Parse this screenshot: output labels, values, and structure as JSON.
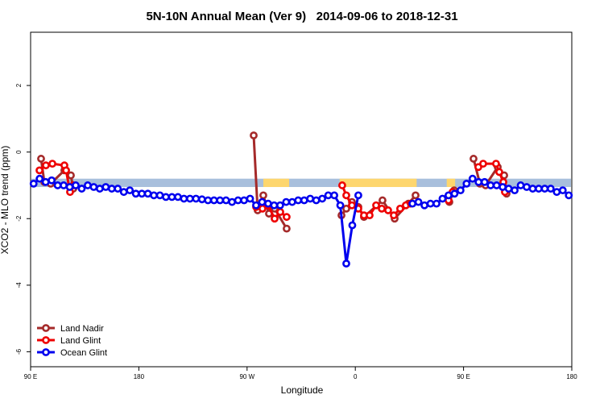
{
  "chart_data": {
    "type": "line",
    "title": "5N-10N Annual Mean (Ver 9)   2014-09-06 to 2018-12-31",
    "xlabel": "Longitude",
    "ylabel": "XCO2 - MLO trend (ppm)",
    "xlim": [
      90,
      540
    ],
    "ylim": [
      -6.45,
      3.6
    ],
    "xticks": [
      {
        "value": 90,
        "label": "90 E"
      },
      180,
      {
        "value": 270,
        "label": "90 W"
      },
      {
        "value": 360,
        "label": "0"
      },
      {
        "value": 450,
        "label": "90 E"
      },
      {
        "value": 540,
        "label": "180"
      }
    ],
    "yticks": [
      -6,
      -4,
      -2,
      0,
      2
    ],
    "band": {
      "ylim": [
        -1.05,
        -0.8
      ],
      "color": "#a8bfdc",
      "land_color": "#fdd66e",
      "land": [
        [
          283.5,
          305
        ],
        [
          347,
          411
        ],
        [
          436,
          443
        ]
      ]
    },
    "legend": "bottom-left",
    "series": [
      {
        "name": "Land Nadir",
        "color": "#a52a2a",
        "x": [
          98.7,
          101.4,
          106.7,
          118.1,
          123.5,
          125.5,
          200,
          275.5,
          278.8,
          283.5,
          288.2,
          292.9,
          302.9,
          325,
          348.5,
          352.5,
          357.2,
          362.5,
          367.2,
          382.6,
          392.7,
          404.1,
          410.1,
          425,
          438.2,
          442.2,
          450,
          458.3,
          463.6,
          468.3,
          478.4,
          483.8,
          485.8
        ],
        "values": [
          -0.2,
          -0.9,
          -0.95,
          -0.55,
          -0.7,
          -1.1,
          null,
          0.5,
          -1.75,
          -1.3,
          -1.85,
          -1.7,
          -2.3,
          null,
          -1.9,
          -1.7,
          -1.5,
          -1.65,
          -1.95,
          -1.45,
          -2.0,
          -1.55,
          -1.3,
          null,
          -1.5,
          -1.15,
          null,
          -0.2,
          -0.95,
          -1.0,
          -0.45,
          -0.7,
          -1.25
        ]
      },
      {
        "name": "Land Glint",
        "color": "#ee0000",
        "x": [
          97.4,
          102.7,
          108.1,
          118.1,
          119.5,
          122.8,
          125.5,
          200,
          277.5,
          282.8,
          287.5,
          292.9,
          297.6,
          302.9,
          325,
          349.1,
          352.5,
          357.2,
          362.5,
          367.2,
          371.9,
          377.3,
          382,
          387.3,
          392,
          397.3,
          402,
          406.1,
          420,
          437.5,
          440.9,
          450,
          462.3,
          466.3,
          477,
          479.7,
          483.1,
          484.4
        ],
        "values": [
          -0.55,
          -0.4,
          -0.35,
          -0.4,
          -0.55,
          -1.2,
          -1.0,
          null,
          -1.65,
          -1.7,
          -1.6,
          -2.0,
          -1.8,
          -1.95,
          null,
          -1.0,
          -1.3,
          -1.6,
          -1.7,
          -1.9,
          -1.9,
          -1.6,
          -1.7,
          -1.75,
          -1.9,
          -1.7,
          -1.6,
          -1.55,
          null,
          -1.45,
          -1.2,
          null,
          -0.45,
          -0.35,
          -0.35,
          -0.6,
          -0.9,
          -1.2
        ]
      },
      {
        "name": "Ocean Glint",
        "color": "#0000ee",
        "x": [
          92.5,
          97.5,
          102.5,
          107.5,
          112.5,
          117.5,
          122.5,
          127.5,
          132.5,
          137.5,
          142.5,
          147.5,
          152.5,
          157.5,
          162.5,
          167.5,
          172.5,
          177.5,
          182.5,
          187.5,
          192.5,
          197.5,
          202.5,
          207.5,
          212.5,
          217.5,
          222.5,
          227.5,
          232.5,
          237.5,
          242.5,
          247.5,
          252.5,
          257.5,
          262.5,
          267.5,
          272.5,
          277.5,
          282.5,
          287.5,
          292.5,
          297.5,
          302.5,
          307.5,
          312.5,
          317.5,
          322.5,
          327.5,
          332.5,
          337.5,
          342.5,
          347.5,
          352.5,
          357.5,
          362.5,
          367.5,
          372.5,
          377.5,
          382.5,
          387.5,
          392.5,
          397.5,
          402.5,
          407.5,
          412.5,
          417.5,
          422.5,
          427.5,
          432.5,
          437.5,
          442.5,
          447.5,
          452.5,
          457.5,
          462.5,
          467.5,
          472.5,
          477.5,
          482.5,
          487.5,
          492.5,
          497.5,
          502.5,
          507.5,
          512.5,
          517.5,
          522.5,
          527.5,
          532.5,
          537.5
        ],
        "values": [
          -0.95,
          -0.8,
          -0.9,
          -0.85,
          -1.0,
          -1.0,
          -1.05,
          -1.0,
          -1.1,
          -1.0,
          -1.05,
          -1.1,
          -1.05,
          -1.1,
          -1.1,
          -1.2,
          -1.15,
          -1.25,
          -1.25,
          -1.25,
          -1.3,
          -1.3,
          -1.35,
          -1.35,
          -1.35,
          -1.4,
          -1.4,
          -1.4,
          -1.42,
          -1.45,
          -1.45,
          -1.45,
          -1.45,
          -1.5,
          -1.45,
          -1.45,
          -1.4,
          -1.6,
          -1.5,
          -1.55,
          -1.6,
          -1.6,
          -1.5,
          -1.5,
          -1.45,
          -1.45,
          -1.4,
          -1.45,
          -1.4,
          -1.3,
          -1.3,
          -1.6,
          -3.35,
          -2.2,
          -1.3,
          null,
          null,
          null,
          null,
          null,
          null,
          null,
          null,
          -1.55,
          -1.5,
          -1.6,
          -1.55,
          -1.55,
          -1.4,
          -1.3,
          -1.25,
          -1.15,
          -0.95,
          -0.8,
          -0.9,
          -0.9,
          -1.0,
          -1.0,
          -1.05,
          -1.1,
          -1.15,
          -1.0,
          -1.05,
          -1.1,
          -1.1,
          -1.1,
          -1.1,
          -1.2,
          -1.15,
          -1.3
        ]
      }
    ]
  }
}
